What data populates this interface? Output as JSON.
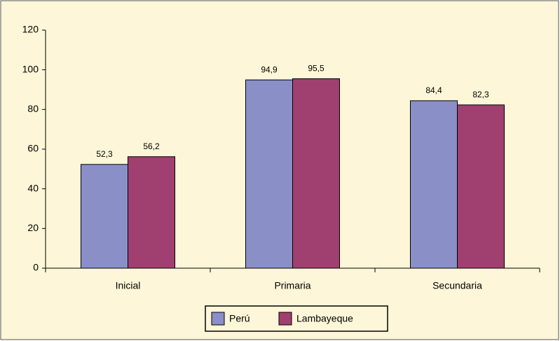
{
  "chart_data": {
    "type": "bar",
    "categories": [
      "Inicial",
      "Primaria",
      "Secundaria"
    ],
    "series": [
      {
        "name": "Perú",
        "color": "#8b8fc8",
        "values": [
          52.3,
          94.9,
          84.4
        ],
        "value_labels": [
          "52,3",
          "94,9",
          "84,4"
        ]
      },
      {
        "name": "Lambayeque",
        "color": "#a04070",
        "values": [
          56.2,
          95.5,
          82.3
        ],
        "value_labels": [
          "56,2",
          "95,5",
          "82,3"
        ]
      }
    ],
    "ylim": [
      0,
      120
    ],
    "yticks": [
      0,
      20,
      40,
      60,
      80,
      100,
      120
    ],
    "grid": false,
    "legend": "bottom"
  }
}
